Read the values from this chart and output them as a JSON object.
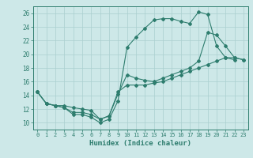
{
  "xlabel": "Humidex (Indice chaleur)",
  "bg_color": "#cde8e8",
  "grid_color": "#aacfcf",
  "line_color": "#2e7d6e",
  "xlim": [
    -0.5,
    23.5
  ],
  "ylim": [
    9.0,
    27.0
  ],
  "xticks": [
    0,
    1,
    2,
    3,
    4,
    5,
    6,
    7,
    8,
    9,
    10,
    11,
    12,
    13,
    14,
    15,
    16,
    17,
    18,
    19,
    20,
    21,
    22,
    23
  ],
  "yticks": [
    10,
    12,
    14,
    16,
    18,
    20,
    22,
    24,
    26
  ],
  "line1_x": [
    0,
    1,
    2,
    3,
    4,
    5,
    6,
    7,
    8,
    9,
    10,
    11,
    12,
    13,
    14,
    15,
    16,
    17,
    18,
    19,
    20,
    21,
    22
  ],
  "line1_y": [
    14.5,
    12.8,
    12.5,
    12.2,
    11.2,
    11.2,
    10.8,
    10.0,
    10.5,
    13.2,
    21.0,
    22.5,
    23.8,
    25.0,
    25.2,
    25.2,
    24.8,
    24.5,
    26.2,
    25.8,
    21.2,
    19.5,
    19.2
  ],
  "line2_x": [
    0,
    1,
    2,
    3,
    4,
    5,
    6,
    7,
    8,
    9,
    10,
    11,
    12,
    13,
    14,
    15,
    16,
    17,
    18,
    19,
    20,
    21,
    22,
    23
  ],
  "line2_y": [
    14.5,
    12.8,
    12.5,
    12.2,
    11.5,
    11.5,
    11.2,
    10.5,
    11.0,
    14.2,
    17.0,
    16.5,
    16.2,
    16.0,
    16.5,
    17.0,
    17.5,
    18.0,
    19.0,
    23.2,
    22.8,
    21.2,
    19.5,
    19.2
  ],
  "line3_x": [
    0,
    1,
    2,
    3,
    4,
    5,
    6,
    7,
    8,
    9,
    10,
    11,
    12,
    13,
    14,
    15,
    16,
    17,
    18,
    19,
    20,
    21,
    22,
    23
  ],
  "line3_y": [
    14.5,
    12.8,
    12.5,
    12.5,
    12.2,
    12.0,
    11.8,
    10.5,
    11.0,
    14.5,
    15.5,
    15.5,
    15.5,
    15.8,
    16.0,
    16.5,
    17.0,
    17.5,
    18.0,
    18.5,
    19.0,
    19.5,
    19.5,
    19.2
  ]
}
